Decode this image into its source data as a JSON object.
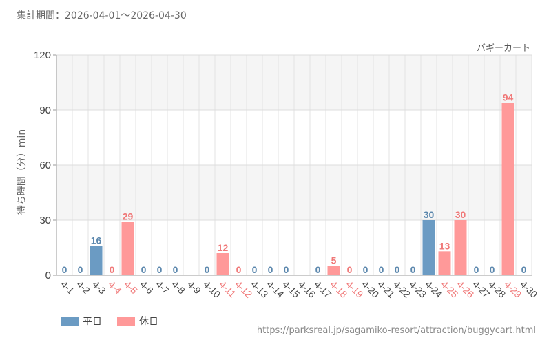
{
  "header": {
    "period": "集計期間：2026-04-01～2026-04-30"
  },
  "source_url": "https://parksreal.jp/sagamiko-resort/attraction/buggycart.html",
  "colors": {
    "weekday": "#6b9bc3",
    "holiday": "#ff9999",
    "weekday_label": "#5b87ad",
    "holiday_label": "#f07878",
    "band": "#f5f5f5"
  },
  "chart_data": {
    "type": "bar",
    "title": "バギーカート",
    "ylabel": "待ち時間（分）min",
    "xlabel": "",
    "ylim": [
      0,
      120
    ],
    "yticks": [
      0,
      30,
      60,
      90,
      120
    ],
    "grid": true,
    "legend_position": "bottom-left",
    "categories": [
      "4-1",
      "4-2",
      "4-3",
      "4-4",
      "4-5",
      "4-6",
      "4-7",
      "4-8",
      "4-9",
      "4-10",
      "4-11",
      "4-12",
      "4-13",
      "4-14",
      "4-15",
      "4-16",
      "4-17",
      "4-18",
      "4-19",
      "4-20",
      "4-21",
      "4-22",
      "4-23",
      "4-24",
      "4-25",
      "4-26",
      "4-27",
      "4-28",
      "4-29",
      "4-30"
    ],
    "values": [
      0,
      0,
      16,
      0,
      29,
      0,
      0,
      0,
      null,
      0,
      12,
      0,
      0,
      0,
      0,
      null,
      0,
      5,
      0,
      0,
      0,
      0,
      0,
      30,
      13,
      30,
      0,
      0,
      94,
      0
    ],
    "day_type": [
      "weekday",
      "weekday",
      "weekday",
      "holiday",
      "holiday",
      "weekday",
      "weekday",
      "weekday",
      "weekday",
      "weekday",
      "holiday",
      "holiday",
      "weekday",
      "weekday",
      "weekday",
      "weekday",
      "weekday",
      "holiday",
      "holiday",
      "weekday",
      "weekday",
      "weekday",
      "weekday",
      "weekday",
      "holiday",
      "holiday",
      "weekday",
      "weekday",
      "holiday",
      "weekday"
    ],
    "series": [
      {
        "name": "平日",
        "color": "#6b9bc3"
      },
      {
        "name": "休日",
        "color": "#ff9999"
      }
    ]
  }
}
